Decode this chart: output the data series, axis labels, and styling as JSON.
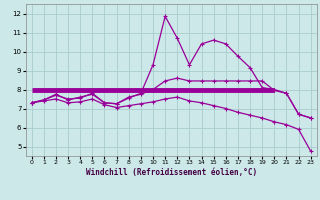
{
  "x": [
    0,
    1,
    2,
    3,
    4,
    5,
    6,
    7,
    8,
    9,
    10,
    11,
    12,
    13,
    14,
    15,
    16,
    17,
    18,
    19,
    20,
    21,
    22,
    23
  ],
  "line_top": [
    7.3,
    7.45,
    7.7,
    7.5,
    7.55,
    7.8,
    7.3,
    7.25,
    7.55,
    7.8,
    9.3,
    11.85,
    10.7,
    9.3,
    10.4,
    10.6,
    10.4,
    9.75,
    9.15,
    8.1,
    8.0,
    7.8,
    6.7,
    6.5
  ],
  "line_mid": [
    7.3,
    7.45,
    7.75,
    7.45,
    7.6,
    7.75,
    7.3,
    7.25,
    7.6,
    7.75,
    8.0,
    8.45,
    8.6,
    8.45,
    8.45,
    8.45,
    8.45,
    8.45,
    8.45,
    8.45,
    7.95,
    7.8,
    6.7,
    6.5
  ],
  "line_bot": [
    7.3,
    7.4,
    7.5,
    7.3,
    7.35,
    7.5,
    7.2,
    7.05,
    7.15,
    7.25,
    7.35,
    7.5,
    7.6,
    7.4,
    7.3,
    7.15,
    7.0,
    6.8,
    6.65,
    6.5,
    6.3,
    6.15,
    5.9,
    4.75
  ],
  "line_color": "#990099",
  "bg_color": "#cce8e8",
  "grid_color": "#aacccc",
  "xlabel": "Windchill (Refroidissement éolien,°C)",
  "xlim": [
    -0.5,
    23.5
  ],
  "ylim": [
    4.5,
    12.5
  ],
  "yticks": [
    5,
    6,
    7,
    8,
    9,
    10,
    11,
    12
  ],
  "xticks": [
    0,
    1,
    2,
    3,
    4,
    5,
    6,
    7,
    8,
    9,
    10,
    11,
    12,
    13,
    14,
    15,
    16,
    17,
    18,
    19,
    20,
    21,
    22,
    23
  ],
  "flat_y": 8.0,
  "flat_x_start": 0,
  "flat_x_end": 20
}
